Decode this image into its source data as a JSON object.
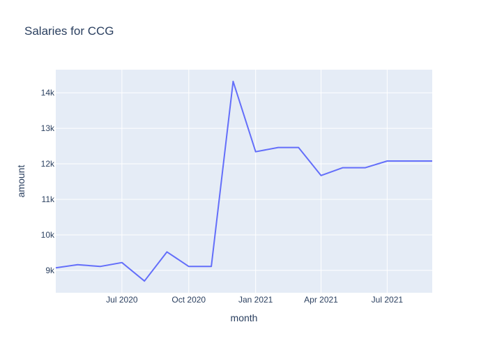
{
  "chart_data": {
    "type": "line",
    "title": "Salaries for CCG",
    "xlabel": "month",
    "ylabel": "amount",
    "x": [
      "2020-04-01",
      "2020-05-01",
      "2020-06-01",
      "2020-07-01",
      "2020-08-01",
      "2020-09-01",
      "2020-10-01",
      "2020-11-01",
      "2020-12-01",
      "2021-01-01",
      "2021-02-01",
      "2021-03-01",
      "2021-04-01",
      "2021-05-01",
      "2021-06-01",
      "2021-07-01",
      "2021-08-01",
      "2021-09-01"
    ],
    "series": [
      {
        "values": [
          9070,
          9160,
          9110,
          9220,
          8700,
          9520,
          9110,
          9110,
          14320,
          12340,
          12460,
          12460,
          11670,
          11890,
          11890,
          12080,
          12080,
          12080
        ],
        "color": "#636efa"
      }
    ],
    "xlim": [
      "2020-04-01",
      "2021-09-01"
    ],
    "ylim": [
      8370,
      14650
    ],
    "x_ticks": [
      {
        "date": "2020-07-01",
        "label": "Jul 2020"
      },
      {
        "date": "2020-10-01",
        "label": "Oct 2020"
      },
      {
        "date": "2021-01-01",
        "label": "Jan 2021"
      },
      {
        "date": "2021-04-01",
        "label": "Apr 2021"
      },
      {
        "date": "2021-07-01",
        "label": "Jul 2021"
      }
    ],
    "y_ticks": [
      {
        "value": 9000,
        "label": "9k"
      },
      {
        "value": 10000,
        "label": "10k"
      },
      {
        "value": 11000,
        "label": "11k"
      },
      {
        "value": 12000,
        "label": "12k"
      },
      {
        "value": 13000,
        "label": "13k"
      },
      {
        "value": 14000,
        "label": "14k"
      }
    ],
    "grid": true,
    "legend": "none",
    "colors": {
      "plot_background": "#e5ecf6",
      "grid": "#ffffff",
      "text": "#2a3f5f",
      "line": "#636efa"
    }
  }
}
